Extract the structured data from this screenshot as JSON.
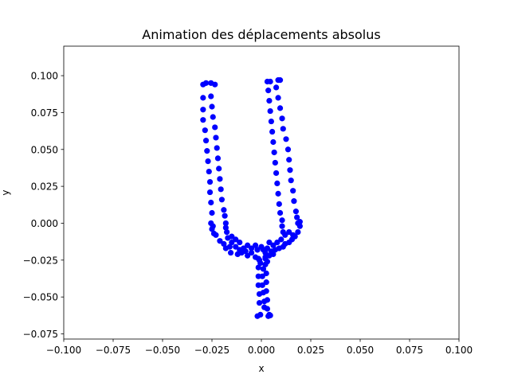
{
  "chart_data": {
    "type": "scatter",
    "title": "Animation des déplacements absolus",
    "xlabel": "x",
    "ylabel": "y",
    "xlim": [
      -0.1,
      0.1
    ],
    "ylim": [
      -0.0785,
      0.12
    ],
    "xticks": [
      -0.1,
      -0.075,
      -0.05,
      -0.025,
      0.0,
      0.025,
      0.05,
      0.075,
      0.1
    ],
    "xtick_labels": [
      "−0.100",
      "−0.075",
      "−0.050",
      "−0.025",
      "0.000",
      "0.025",
      "0.050",
      "0.075",
      "0.100"
    ],
    "yticks": [
      -0.075,
      -0.05,
      -0.025,
      0.0,
      0.025,
      0.05,
      0.075,
      0.1
    ],
    "ytick_labels": [
      "−0.075",
      "−0.050",
      "−0.025",
      "0.000",
      "0.025",
      "0.050",
      "0.075",
      "0.100"
    ],
    "grid": false,
    "marker_color": "#0000ff",
    "series": [
      {
        "points": [
          [
            -0.0295,
            0.094
          ],
          [
            -0.028,
            0.095
          ],
          [
            -0.0255,
            0.095
          ],
          [
            -0.0235,
            0.094
          ],
          [
            -0.0295,
            0.085
          ],
          [
            -0.0295,
            0.077
          ],
          [
            -0.0295,
            0.07
          ],
          [
            -0.0285,
            0.063
          ],
          [
            -0.028,
            0.056
          ],
          [
            -0.0275,
            0.049
          ],
          [
            -0.027,
            0.042
          ],
          [
            -0.0265,
            0.035
          ],
          [
            -0.026,
            0.028
          ],
          [
            -0.026,
            0.021
          ],
          [
            -0.0255,
            0.014
          ],
          [
            -0.025,
            0.007
          ],
          [
            -0.0255,
            0.0
          ],
          [
            -0.025,
            -0.004
          ],
          [
            -0.024,
            -0.007
          ],
          [
            -0.0255,
            0.086
          ],
          [
            -0.025,
            0.079
          ],
          [
            -0.0245,
            0.072
          ],
          [
            -0.0235,
            0.065
          ],
          [
            -0.023,
            0.058
          ],
          [
            -0.0225,
            0.051
          ],
          [
            -0.022,
            0.044
          ],
          [
            -0.0215,
            0.037
          ],
          [
            -0.021,
            0.03
          ],
          [
            -0.0205,
            0.023
          ],
          [
            -0.02,
            0.016
          ],
          [
            -0.019,
            0.009
          ],
          [
            -0.0185,
            0.005
          ],
          [
            -0.018,
            0.0
          ],
          [
            -0.018,
            -0.003
          ],
          [
            -0.0175,
            -0.006
          ],
          [
            -0.0245,
            -0.002
          ],
          [
            -0.023,
            -0.008
          ],
          [
            -0.021,
            -0.012
          ],
          [
            -0.019,
            -0.014
          ],
          [
            -0.018,
            -0.017
          ],
          [
            -0.016,
            -0.016
          ],
          [
            -0.015,
            -0.013
          ],
          [
            -0.013,
            -0.016
          ],
          [
            -0.011,
            -0.018
          ],
          [
            -0.009,
            -0.017
          ],
          [
            -0.007,
            -0.015
          ],
          [
            -0.005,
            -0.017
          ],
          [
            -0.003,
            -0.015
          ],
          [
            -0.017,
            -0.01
          ],
          [
            -0.015,
            -0.009
          ],
          [
            -0.013,
            -0.011
          ],
          [
            -0.011,
            -0.013
          ],
          [
            -0.01,
            -0.02
          ],
          [
            -0.007,
            -0.022
          ],
          [
            -0.005,
            -0.02
          ],
          [
            -0.003,
            -0.023
          ],
          [
            -0.002,
            -0.018
          ],
          [
            -0.001,
            -0.025
          ],
          [
            0.0,
            -0.016
          ],
          [
            -0.012,
            -0.021
          ],
          [
            -0.008,
            -0.019
          ],
          [
            -0.0155,
            -0.02
          ],
          [
            0.003,
            0.096
          ],
          [
            0.0045,
            0.096
          ],
          [
            0.0085,
            0.097
          ],
          [
            0.0095,
            0.097
          ],
          [
            0.0035,
            0.09
          ],
          [
            0.004,
            0.083
          ],
          [
            0.0045,
            0.076
          ],
          [
            0.005,
            0.069
          ],
          [
            0.0055,
            0.062
          ],
          [
            0.006,
            0.055
          ],
          [
            0.0065,
            0.048
          ],
          [
            0.007,
            0.041
          ],
          [
            0.0075,
            0.034
          ],
          [
            0.008,
            0.027
          ],
          [
            0.0085,
            0.02
          ],
          [
            0.009,
            0.013
          ],
          [
            0.0095,
            0.007
          ],
          [
            0.0105,
            0.002
          ],
          [
            0.0105,
            -0.002
          ],
          [
            0.011,
            -0.006
          ],
          [
            0.0075,
            0.092
          ],
          [
            0.0085,
            0.085
          ],
          [
            0.0095,
            0.078
          ],
          [
            0.0105,
            0.071
          ],
          [
            0.011,
            0.064
          ],
          [
            0.0125,
            0.057
          ],
          [
            0.0135,
            0.05
          ],
          [
            0.014,
            0.043
          ],
          [
            0.0145,
            0.036
          ],
          [
            0.015,
            0.029
          ],
          [
            0.016,
            0.022
          ],
          [
            0.0165,
            0.015
          ],
          [
            0.0175,
            0.008
          ],
          [
            0.018,
            0.004
          ],
          [
            0.0185,
            0.0
          ],
          [
            0.0195,
            0.001
          ],
          [
            0.0195,
            -0.002
          ],
          [
            0.0185,
            -0.006
          ],
          [
            0.017,
            -0.009
          ],
          [
            0.0155,
            -0.011
          ],
          [
            0.014,
            -0.013
          ],
          [
            0.012,
            -0.014
          ],
          [
            0.011,
            -0.016
          ],
          [
            0.009,
            -0.017
          ],
          [
            0.007,
            -0.018
          ],
          [
            0.005,
            -0.019
          ],
          [
            0.003,
            -0.017
          ],
          [
            0.001,
            -0.018
          ],
          [
            0.014,
            -0.006
          ],
          [
            0.016,
            -0.008
          ],
          [
            0.012,
            -0.008
          ],
          [
            0.01,
            -0.011
          ],
          [
            0.008,
            -0.013
          ],
          [
            0.006,
            -0.015
          ],
          [
            0.004,
            -0.013
          ],
          [
            0.002,
            -0.02
          ],
          [
            0.004,
            -0.022
          ],
          [
            0.006,
            -0.021
          ],
          [
            0.002,
            -0.024
          ],
          [
            0.003,
            -0.026
          ],
          [
            -0.002,
            -0.018
          ],
          [
            -0.0015,
            -0.024
          ],
          [
            -0.0015,
            -0.03
          ],
          [
            -0.0015,
            -0.036
          ],
          [
            -0.0015,
            -0.042
          ],
          [
            -0.001,
            -0.048
          ],
          [
            -0.001,
            -0.054
          ],
          [
            -0.0005,
            -0.062
          ],
          [
            -0.002,
            -0.063
          ],
          [
            0.002,
            -0.023
          ],
          [
            0.002,
            -0.028
          ],
          [
            0.0025,
            -0.034
          ],
          [
            0.0025,
            -0.04
          ],
          [
            0.0025,
            -0.046
          ],
          [
            0.003,
            -0.052
          ],
          [
            0.003,
            -0.058
          ],
          [
            0.004,
            -0.062
          ],
          [
            0.0035,
            -0.063
          ],
          [
            0.0045,
            -0.0625
          ],
          [
            -0.0005,
            -0.027
          ],
          [
            0.001,
            -0.031
          ],
          [
            0.0005,
            -0.036
          ],
          [
            0.0005,
            -0.042
          ],
          [
            0.001,
            -0.047
          ],
          [
            0.0015,
            -0.053
          ],
          [
            0.0015,
            -0.057
          ]
        ]
      }
    ]
  }
}
